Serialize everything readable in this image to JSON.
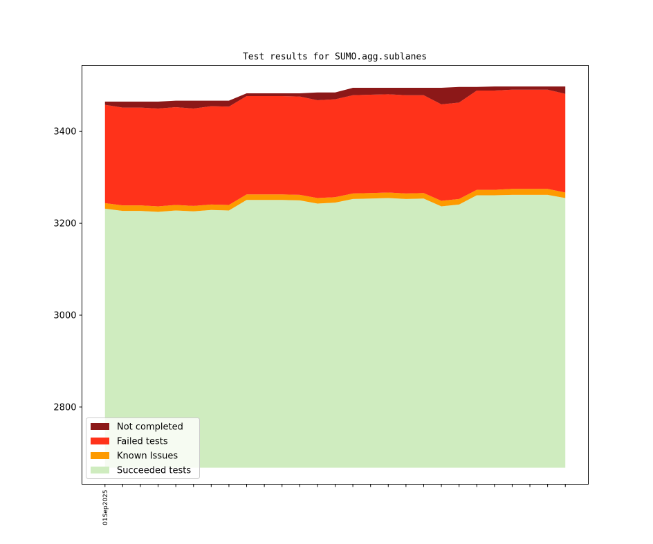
{
  "chart_data": {
    "type": "area",
    "stacked": true,
    "title": "Test results for SUMO.agg.sublanes",
    "xlabel": "",
    "ylabel": "",
    "x": [
      0,
      1,
      2,
      3,
      4,
      5,
      6,
      7,
      8,
      9,
      10,
      11,
      12,
      13,
      14,
      15,
      16,
      17,
      18,
      19,
      20,
      21,
      22,
      23,
      24,
      25,
      26
    ],
    "xtick_labels": [
      "01Sep2025",
      "",
      "",
      "",
      "",
      "",
      "",
      "",
      "",
      "",
      "",
      "",
      "",
      "",
      "",
      "",
      "",
      "",
      "",
      "",
      "",
      "",
      "",
      "",
      "",
      "",
      ""
    ],
    "yticks": [
      2800,
      3000,
      3200,
      3400
    ],
    "ylim": [
      2632,
      3544
    ],
    "xlim": [
      -1.3,
      27.3
    ],
    "baseline": 2668,
    "grid": false,
    "legend_position": "lower-left",
    "series": [
      {
        "name": "Succeeded tests",
        "color": "#cfecbf",
        "top": [
          3232,
          3227,
          3227,
          3225,
          3228,
          3226,
          3229,
          3228,
          3251,
          3251,
          3251,
          3250,
          3243,
          3245,
          3253,
          3254,
          3255,
          3253,
          3254,
          3237,
          3241,
          3261,
          3261,
          3262,
          3262,
          3262,
          3255
        ]
      },
      {
        "name": "Known Issues",
        "color": "#fd9a00",
        "top": [
          3244,
          3239,
          3239,
          3237,
          3240,
          3238,
          3241,
          3240,
          3263,
          3263,
          3263,
          3262,
          3255,
          3257,
          3265,
          3266,
          3267,
          3265,
          3266,
          3249,
          3253,
          3273,
          3273,
          3275,
          3275,
          3275,
          3267
        ]
      },
      {
        "name": "Failed tests",
        "color": "#ff321a",
        "top": [
          3458,
          3452,
          3452,
          3450,
          3453,
          3450,
          3455,
          3454,
          3477,
          3477,
          3477,
          3476,
          3468,
          3470,
          3479,
          3480,
          3481,
          3479,
          3479,
          3459,
          3463,
          3489,
          3489,
          3491,
          3491,
          3491,
          3482
        ]
      },
      {
        "name": "Not completed",
        "color": "#8c1818",
        "top": [
          3465,
          3465,
          3465,
          3465,
          3467,
          3467,
          3467,
          3467,
          3483,
          3483,
          3483,
          3483,
          3485,
          3485,
          3495,
          3495,
          3495,
          3495,
          3495,
          3495,
          3497,
          3497,
          3498,
          3498,
          3498,
          3498,
          3498
        ]
      }
    ]
  }
}
